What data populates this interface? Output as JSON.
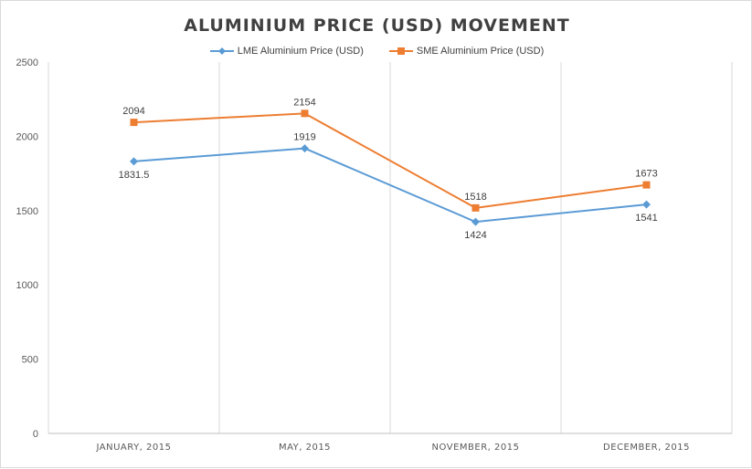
{
  "chart_data": {
    "type": "line",
    "title": "ALUMINIUM PRICE (USD) MOVEMENT",
    "categories": [
      "JANUARY, 2015",
      "MAY, 2015",
      "NOVEMBER, 2015",
      "DECEMBER, 2015"
    ],
    "series": [
      {
        "name": "LME Aluminium Price (USD)",
        "values": [
          1831.5,
          1919,
          1424,
          1541
        ],
        "color": "#5b9bd5",
        "marker": "diamond",
        "label_pos": [
          "below",
          "above",
          "below",
          "below"
        ]
      },
      {
        "name": "SME Aluminium Price (USD)",
        "values": [
          2094,
          2154,
          1518,
          1673
        ],
        "color": "#ed7d31",
        "marker": "square",
        "label_pos": [
          "above",
          "above",
          "above",
          "above"
        ]
      }
    ],
    "ylim": [
      0,
      2500
    ],
    "yticks": [
      0,
      500,
      1000,
      1500,
      2000,
      2500
    ],
    "grid": "vertical category separators",
    "legend_position": "top"
  }
}
